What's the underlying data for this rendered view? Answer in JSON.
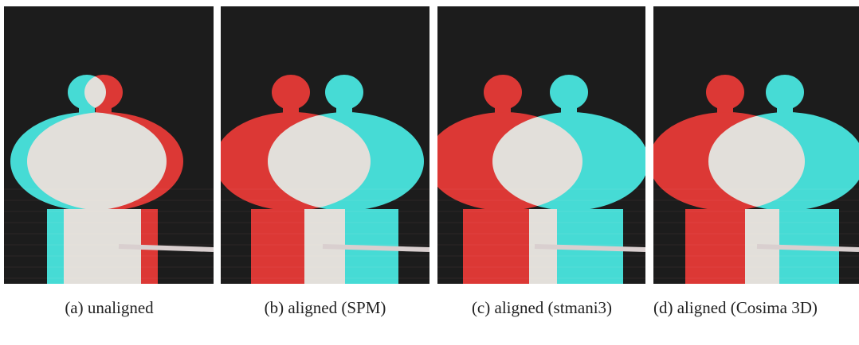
{
  "figure": {
    "panels": [
      {
        "caption": "(a) unaligned"
      },
      {
        "caption": "(b) aligned (SPM)"
      },
      {
        "caption": "(c) aligned (stmani3)"
      },
      {
        "caption": "(d) aligned (Cosima 3D)"
      }
    ]
  }
}
